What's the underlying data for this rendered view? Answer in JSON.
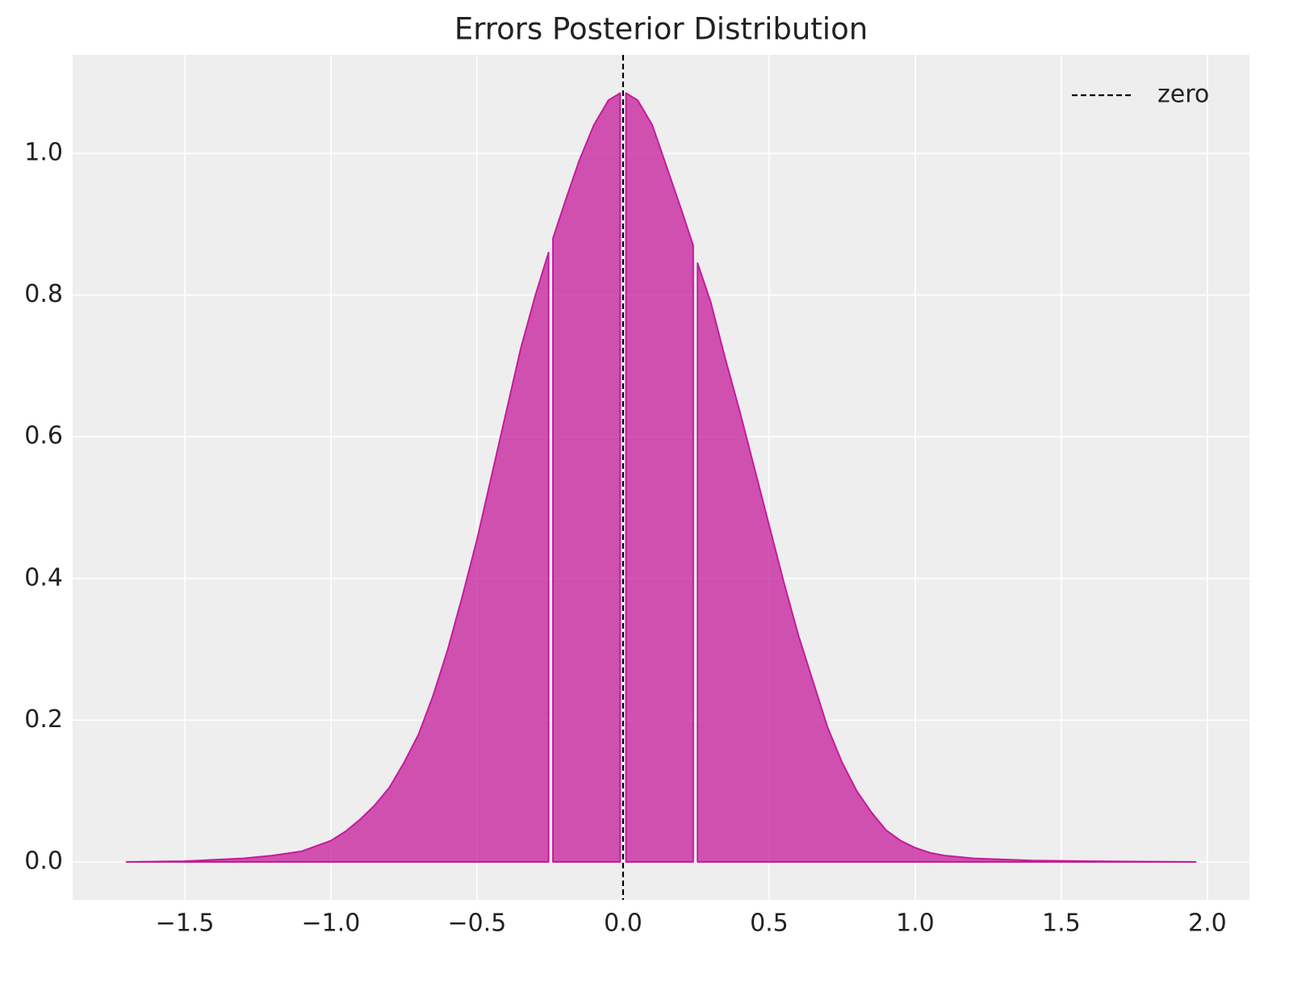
{
  "chart_data": {
    "type": "area",
    "title": "Errors Posterior Distribution",
    "color": "#c51b9b",
    "segments": [
      {
        "x": [
          -1.7,
          -1.5,
          -1.3,
          -1.2,
          -1.1,
          -1.0,
          -0.95,
          -0.9,
          -0.85,
          -0.8,
          -0.75,
          -0.7,
          -0.65,
          -0.6,
          -0.55,
          -0.5,
          -0.45,
          -0.4,
          -0.35,
          -0.3,
          -0.255
        ],
        "values": [
          0.0,
          0.001,
          0.005,
          0.009,
          0.015,
          0.03,
          0.043,
          0.06,
          0.08,
          0.105,
          0.14,
          0.18,
          0.235,
          0.3,
          0.375,
          0.455,
          0.545,
          0.635,
          0.725,
          0.8,
          0.86
        ]
      },
      {
        "x": [
          -0.24,
          -0.2,
          -0.15,
          -0.1,
          -0.05,
          -0.01
        ],
        "values": [
          0.88,
          0.93,
          0.99,
          1.04,
          1.075,
          1.085
        ]
      },
      {
        "x": [
          0.01,
          0.05,
          0.1,
          0.15,
          0.2,
          0.24
        ],
        "values": [
          1.085,
          1.075,
          1.04,
          0.98,
          0.92,
          0.87
        ]
      },
      {
        "x": [
          0.255,
          0.3,
          0.35,
          0.4,
          0.45,
          0.5,
          0.55,
          0.6,
          0.65,
          0.7,
          0.75,
          0.8,
          0.85,
          0.9,
          0.95,
          1.0,
          1.05,
          1.1,
          1.2,
          1.4,
          1.6,
          1.96
        ],
        "values": [
          0.845,
          0.79,
          0.71,
          0.635,
          0.555,
          0.475,
          0.395,
          0.32,
          0.255,
          0.19,
          0.14,
          0.1,
          0.07,
          0.045,
          0.03,
          0.02,
          0.013,
          0.009,
          0.005,
          0.002,
          0.001,
          0.0
        ]
      }
    ],
    "reference_line": {
      "x": 0,
      "label": "zero",
      "color": "#000000"
    },
    "legend": "upper right",
    "grid": true,
    "xlim": [
      -1.884,
      2.144
    ],
    "ylim": [
      -0.0535,
      1.139
    ],
    "xticks": [
      {
        "value": -1.5,
        "label": "−1.5"
      },
      {
        "value": -1.0,
        "label": "−1.0"
      },
      {
        "value": -0.5,
        "label": "−0.5"
      },
      {
        "value": 0,
        "label": "0.0"
      },
      {
        "value": 0.5,
        "label": "0.5"
      },
      {
        "value": 1.0,
        "label": "1.0"
      },
      {
        "value": 1.5,
        "label": "1.5"
      },
      {
        "value": 2.0,
        "label": "2.0"
      }
    ],
    "yticks": [
      {
        "value": 0,
        "label": "0.0"
      },
      0.2,
      0.4,
      0.6,
      0.8,
      {
        "value": 1.0,
        "label": "1.0"
      }
    ]
  }
}
